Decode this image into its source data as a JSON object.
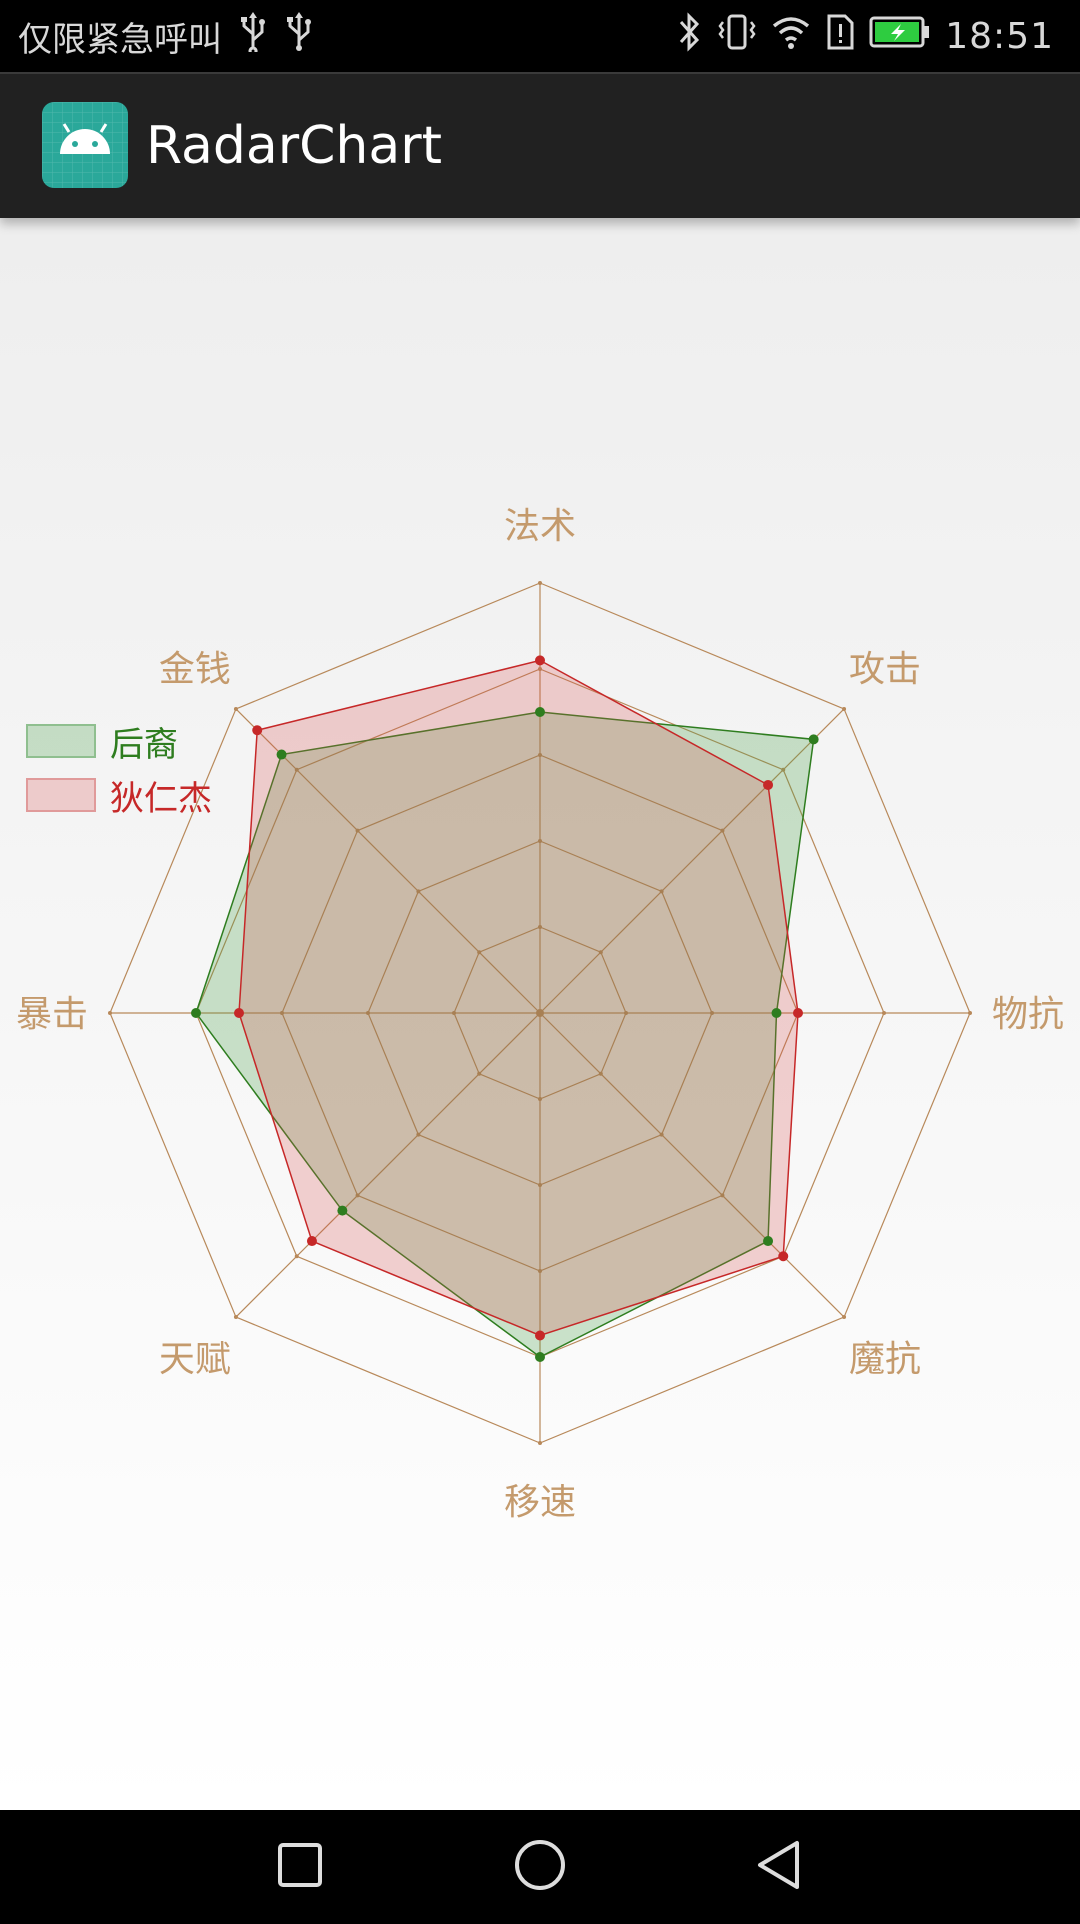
{
  "status_bar": {
    "carrier_text": "仅限紧急呼叫",
    "time": "18:51",
    "icons": [
      "usb-icon",
      "usb-icon",
      "bluetooth-icon",
      "vibrate-icon",
      "wifi-icon",
      "sim-alert-icon",
      "battery-charging-icon"
    ]
  },
  "app_bar": {
    "title": "RadarChart",
    "icon": "android-icon"
  },
  "chart_data": {
    "type": "radar",
    "axes": [
      "法术",
      "攻击",
      "物抗",
      "魔抗",
      "移速",
      "天赋",
      "暴击",
      "金钱"
    ],
    "max": 10,
    "levels": 5,
    "series": [
      {
        "name": "后裔",
        "values": [
          7.0,
          9.0,
          5.5,
          7.5,
          8.0,
          6.5,
          8.0,
          8.5
        ],
        "color": "#2e7d1f",
        "fill": "rgba(76,160,76,0.28)"
      },
      {
        "name": "狄仁杰",
        "values": [
          8.2,
          7.5,
          6.0,
          8.0,
          7.5,
          7.5,
          7.0,
          9.3
        ],
        "color": "#c62828",
        "fill": "rgba(214,80,80,0.25)"
      }
    ],
    "grid_color": "#b8895a",
    "label_color": "#c49a6c"
  },
  "nav_bar": {
    "icons": [
      "recents-icon",
      "home-icon",
      "back-icon"
    ]
  }
}
